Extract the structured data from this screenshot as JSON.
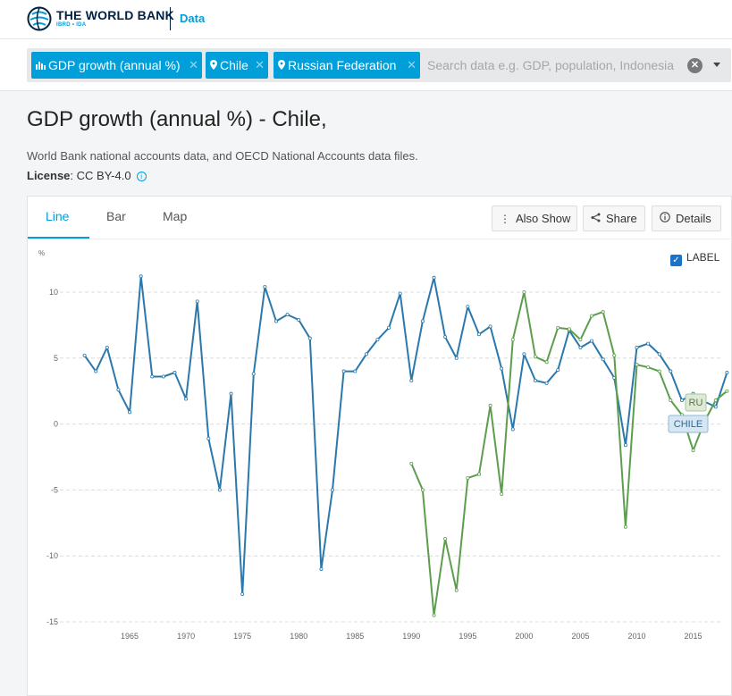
{
  "header": {
    "brand": "THE WORLD BANK",
    "brand_sub": "IBRD • IDA",
    "section": "Data"
  },
  "search": {
    "chips": [
      {
        "label": "GDP growth (annual %)",
        "icon": "bar-chart-icon"
      },
      {
        "label": "Chile",
        "icon": "map-marker-icon"
      },
      {
        "label": "Russian Federation",
        "icon": "map-marker-icon"
      }
    ],
    "placeholder": "Search data e.g. GDP, population, Indonesia"
  },
  "page": {
    "title": "GDP growth (annual %) - Chile,",
    "source": "World Bank national accounts data, and OECD National Accounts data files.",
    "license_label": "License",
    "license_value": ": CC BY-4.0"
  },
  "tabs": [
    "Line",
    "Bar",
    "Map"
  ],
  "buttons": {
    "also_show": "Also Show",
    "share": "Share",
    "details": "Details"
  },
  "label_toggle": "LABEL",
  "colors": {
    "accent": "#009fda",
    "chile": "#2b78ac",
    "russia": "#5c9e4e",
    "nav": "#002244"
  },
  "chart_data": {
    "type": "line",
    "ylabel": "%",
    "ylim": [
      -15,
      11
    ],
    "yticks": [
      10,
      5,
      0,
      -5,
      -10,
      -15
    ],
    "xticks": [
      1965,
      1970,
      1975,
      1980,
      1985,
      1990,
      1995,
      2000,
      2005,
      2010,
      2015
    ],
    "xlim": [
      1960,
      2019
    ],
    "grid": true,
    "series": [
      {
        "name": "CHILE",
        "color": "#2b78ac",
        "x": [
          1961,
          1962,
          1963,
          1964,
          1965,
          1966,
          1967,
          1968,
          1969,
          1970,
          1971,
          1972,
          1973,
          1974,
          1975,
          1976,
          1977,
          1978,
          1979,
          1980,
          1981,
          1982,
          1983,
          1984,
          1985,
          1986,
          1987,
          1988,
          1989,
          1990,
          1991,
          1992,
          1993,
          1994,
          1995,
          1996,
          1997,
          1998,
          1999,
          2000,
          2001,
          2002,
          2003,
          2004,
          2005,
          2006,
          2007,
          2008,
          2009,
          2010,
          2011,
          2012,
          2013,
          2014,
          2015,
          2016,
          2017,
          2018
        ],
        "values": [
          5.2,
          4.0,
          5.8,
          2.6,
          0.9,
          11.2,
          3.6,
          3.6,
          3.9,
          1.9,
          9.3,
          -1.1,
          -5.0,
          2.3,
          -12.9,
          3.8,
          10.4,
          7.8,
          8.3,
          7.9,
          6.5,
          -11.0,
          -5.0,
          4.0,
          4.0,
          5.3,
          6.4,
          7.3,
          9.9,
          3.3,
          7.8,
          11.1,
          6.6,
          5.0,
          8.9,
          6.8,
          7.4,
          4.2,
          -0.4,
          5.3,
          3.3,
          3.1,
          4.1,
          7.1,
          5.8,
          6.3,
          4.9,
          3.5,
          -1.6,
          5.8,
          6.1,
          5.3,
          4.0,
          1.8,
          2.3,
          1.7,
          1.3,
          3.9
        ]
      },
      {
        "name": "RU",
        "color": "#5c9e4e",
        "x": [
          1990,
          1991,
          1992,
          1993,
          1994,
          1995,
          1996,
          1997,
          1998,
          1999,
          2000,
          2001,
          2002,
          2003,
          2004,
          2005,
          2006,
          2007,
          2008,
          2009,
          2010,
          2011,
          2012,
          2013,
          2014,
          2015,
          2016,
          2017,
          2018
        ],
        "values": [
          -3.0,
          -5.0,
          -14.5,
          -8.7,
          -12.6,
          -4.1,
          -3.8,
          1.4,
          -5.3,
          6.4,
          10.0,
          5.1,
          4.7,
          7.3,
          7.2,
          6.4,
          8.2,
          8.5,
          5.2,
          -7.8,
          4.5,
          4.3,
          4.0,
          1.8,
          0.7,
          -2.0,
          0.2,
          1.8,
          2.5
        ]
      }
    ],
    "annotations": [
      "RU",
      "CHILE"
    ]
  }
}
